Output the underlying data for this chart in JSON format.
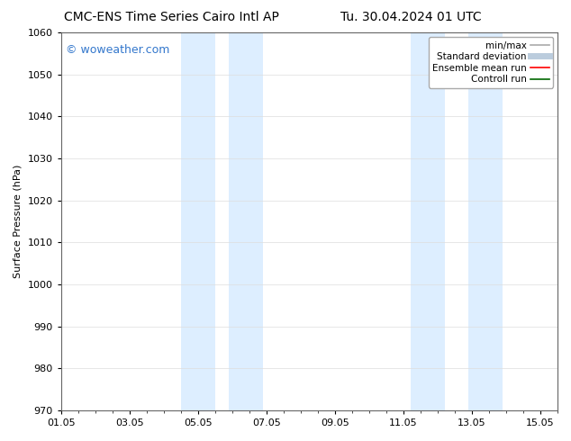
{
  "title_left": "CMC-ENS Time Series Cairo Intl AP",
  "title_right": "Tu. 30.04.2024 01 UTC",
  "ylabel": "Surface Pressure (hPa)",
  "ylim": [
    970,
    1060
  ],
  "yticks": [
    970,
    980,
    990,
    1000,
    1010,
    1020,
    1030,
    1040,
    1050,
    1060
  ],
  "xlim": [
    0,
    14
  ],
  "xtick_labels": [
    "01.05",
    "03.05",
    "05.05",
    "07.05",
    "09.05",
    "11.05",
    "13.05",
    "15.05"
  ],
  "xtick_positions": [
    0,
    2,
    4,
    6,
    8,
    10,
    12,
    14
  ],
  "shaded_bands": [
    {
      "x_start": 3.5,
      "x_end": 4.5
    },
    {
      "x_start": 4.9,
      "x_end": 5.9
    },
    {
      "x_start": 10.2,
      "x_end": 11.2
    },
    {
      "x_start": 11.9,
      "x_end": 12.9
    }
  ],
  "shaded_color": "#ddeeff",
  "background_color": "#ffffff",
  "watermark": "© woweather.com",
  "watermark_color": "#3377cc",
  "legend_entries": [
    {
      "label": "min/max",
      "color": "#aaaaaa",
      "lw": 1.2,
      "style": "solid"
    },
    {
      "label": "Standard deviation",
      "color": "#bbccdd",
      "lw": 5,
      "style": "solid"
    },
    {
      "label": "Ensemble mean run",
      "color": "#ff0000",
      "lw": 1.2,
      "style": "solid"
    },
    {
      "label": "Controll run",
      "color": "#006600",
      "lw": 1.2,
      "style": "solid"
    }
  ],
  "grid_color": "#dddddd",
  "title_fontsize": 10,
  "axis_label_fontsize": 8,
  "tick_fontsize": 8,
  "watermark_fontsize": 9,
  "legend_fontsize": 7.5
}
